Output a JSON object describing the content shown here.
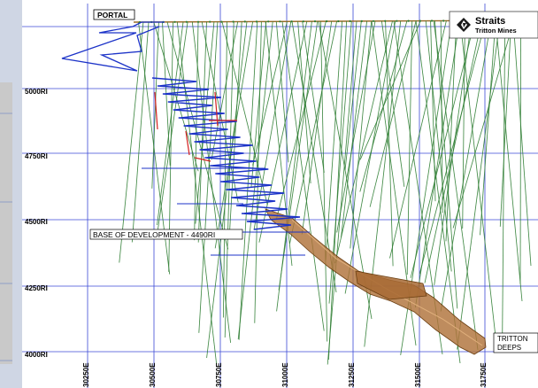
{
  "labels": {
    "portal": "PORTAL",
    "base_of_development": "BASE OF DEVELOPMENT - 4490RI",
    "tritton_deeps_line1": "TRITTON",
    "tritton_deeps_line2": "DEEPS"
  },
  "logo": {
    "name": "Straits",
    "subtitle": "Tritton Mines"
  },
  "y_axis_labels": [
    "5000RI",
    "4750RI",
    "4500RI",
    "4250RI",
    "4000RI"
  ],
  "x_axis_labels": [
    "30250E",
    "30500E",
    "30750E",
    "31000E",
    "31250E",
    "31500E",
    "31750E"
  ],
  "colors": {
    "grid": "#3b4ad6",
    "drillholes": "#2e7d32",
    "decline": "#1c33c8",
    "ore_body": "#b0733a",
    "development_red": "#d42020",
    "surface": "#9a6b28",
    "side_panel": "#c9c9c9",
    "outer_background": "#cfd6e4"
  }
}
